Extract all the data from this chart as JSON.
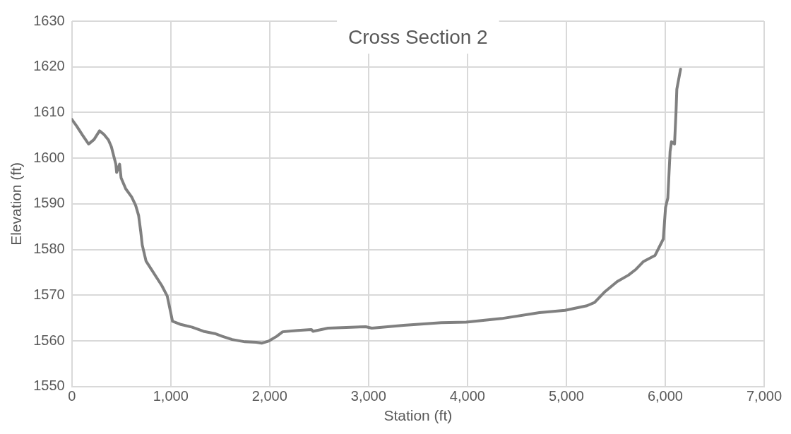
{
  "chart_data": {
    "type": "line",
    "title": "Cross Section 2",
    "xlabel": "Station (ft)",
    "ylabel": "Elevation (ft)",
    "xlim": [
      0,
      7000
    ],
    "xticks": [
      {
        "value": 0,
        "label": "0"
      },
      {
        "value": 1000,
        "label": "1,000"
      },
      {
        "value": 2000,
        "label": "2,000"
      },
      {
        "value": 3000,
        "label": "3,000"
      },
      {
        "value": 4000,
        "label": "4,000"
      },
      {
        "value": 5000,
        "label": "5,000"
      },
      {
        "value": 6000,
        "label": "6,000"
      },
      {
        "value": 7000,
        "label": "7,000"
      }
    ],
    "ylim": [
      1550,
      1630
    ],
    "yticks": [
      1550,
      1560,
      1570,
      1580,
      1590,
      1600,
      1610,
      1620,
      1630
    ],
    "grid": true,
    "legend": false,
    "marker": "none",
    "line_style": "solid",
    "series": [
      {
        "color": "#808080",
        "x": [
          0,
          50,
          110,
          170,
          225,
          280,
          325,
          370,
          400,
          420,
          445,
          453,
          483,
          498,
          545,
          605,
          645,
          675,
          697,
          712,
          750,
          910,
          965,
          1018,
          1102,
          1217,
          1331,
          1446,
          1522,
          1621,
          1751,
          1865,
          1919,
          1995,
          2071,
          2132,
          2285,
          2422,
          2438,
          2590,
          2972,
          3033,
          3354,
          3735,
          3987,
          4346,
          4728,
          4987,
          5208,
          5285,
          5391,
          5514,
          5628,
          5705,
          5781,
          5896,
          5980,
          6003,
          6026,
          6049,
          6063,
          6094,
          6109,
          6117,
          6155
        ],
        "values": [
          1608.5,
          1607,
          1605,
          1603.1,
          1604.1,
          1606,
          1605.2,
          1604,
          1602.5,
          1600.8,
          1598.7,
          1596.9,
          1598.7,
          1595.7,
          1593.3,
          1591.5,
          1589.7,
          1587.5,
          1583.9,
          1581,
          1577.5,
          1572.1,
          1569.8,
          1564.3,
          1563.6,
          1563,
          1562.1,
          1561.6,
          1561,
          1560.3,
          1559.8,
          1559.7,
          1559.5,
          1560,
          1561,
          1562,
          1562.3,
          1562.5,
          1562.1,
          1562.8,
          1563.1,
          1562.8,
          1563.4,
          1564,
          1564.1,
          1564.9,
          1566.2,
          1566.7,
          1567.7,
          1568.4,
          1570.8,
          1573,
          1574.4,
          1575.7,
          1577.4,
          1578.7,
          1582.3,
          1589.2,
          1591.3,
          1601.5,
          1603.6,
          1603.1,
          1610.2,
          1615.1,
          1619.5
        ]
      }
    ]
  }
}
